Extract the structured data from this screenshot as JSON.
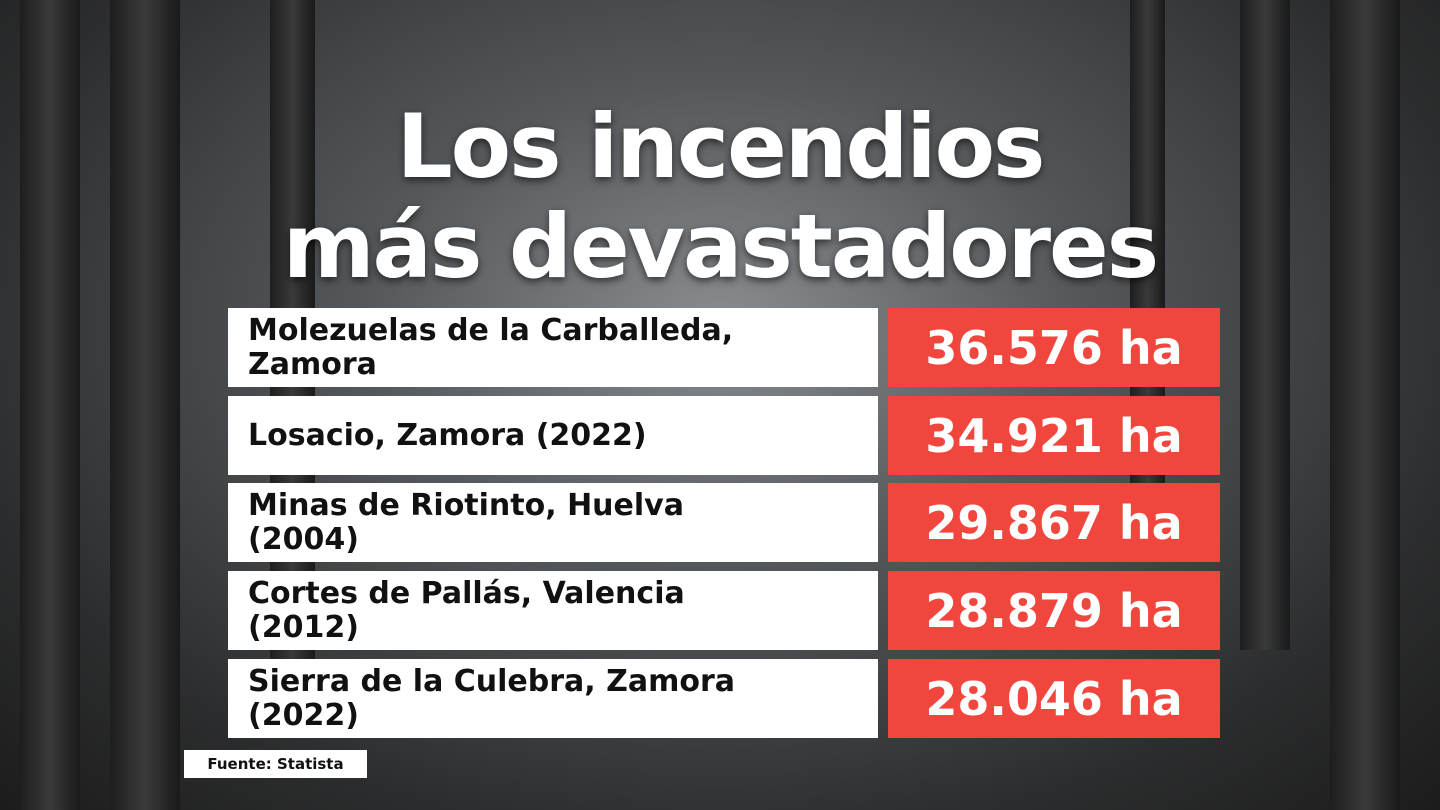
{
  "title_lines": [
    "Los incendios",
    "más devastadores"
  ],
  "rows": [
    {
      "name_lines": [
        "Molezuelas de la Carballeda,",
        "Zamora"
      ],
      "value": "36.576 ha"
    },
    {
      "name_lines": [
        "Losacio, Zamora (2022)"
      ],
      "value": "34.921 ha"
    },
    {
      "name_lines": [
        "Minas de Riotinto, Huelva",
        "(2004)"
      ],
      "value": "29.867 ha"
    },
    {
      "name_lines": [
        "Cortes de Pallás, Valencia",
        "(2012)"
      ],
      "value": "28.879 ha"
    },
    {
      "name_lines": [
        "Sierra de la Culebra, Zamora",
        "(2022)"
      ],
      "value": "28.046 ha"
    }
  ],
  "source": "Fuente: Statista"
}
